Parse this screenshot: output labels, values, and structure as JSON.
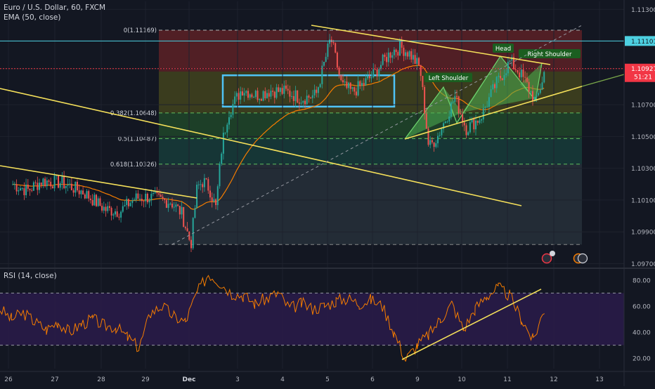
{
  "header": {
    "symbol": "Euro / U.S. Dollar, 60, FXCM",
    "ema_label": "EMA (50, close)",
    "rsi_label": "RSI (14, close)"
  },
  "colors": {
    "background": "#131722",
    "candle_up": "#26a69a",
    "candle_down": "#ef5350",
    "ema": "#f57c00",
    "trendline": "#f5e05a",
    "rsi_line": "#f57c00",
    "pattern_fill": "#4caf50",
    "range_box": "#4fc3f7",
    "fib_top": "#9e2a2b",
    "fib_mid": "#2e7d32",
    "fib_low": "#1b5e50",
    "fib_bottom": "#37474f",
    "rsi_band": "#2a1b4a",
    "current_price": "#f23645",
    "level_line": "#4dd0e1"
  },
  "chart_data": [
    {
      "type": "candlestick",
      "title": "Euro / U.S. Dollar, 60, FXCM",
      "x_ticks": [
        "26",
        "27",
        "28",
        "29",
        "Dec",
        "3",
        "4",
        "5",
        "6",
        "9",
        "10",
        "11",
        "12",
        "13"
      ],
      "y_ticks": [
        "1.11300",
        "1.11101",
        "1.10927",
        "1.10700",
        "1.10500",
        "1.10300",
        "1.10100",
        "1.09900",
        "1.09700"
      ],
      "ylim": [
        1.0968,
        1.1135
      ],
      "current_price": 1.10927,
      "current_price_label": "1.10927",
      "countdown": "51:21",
      "horizontal_level": 1.11101,
      "horizontal_level_label": "1.11101",
      "indicators": [
        "EMA (50, close)"
      ],
      "fibonacci": [
        {
          "level": "0",
          "price": 1.11169,
          "label": "0(1.11169)"
        },
        {
          "level": "0.382",
          "price": 1.10648,
          "label": "0.382(1.10648)"
        },
        {
          "level": "0.5",
          "price": 1.10487,
          "label": "0.5(1.10487)"
        },
        {
          "level": "0.618",
          "price": 1.10326,
          "label": "0.618(1.10326)"
        }
      ],
      "pattern": "head and shoulders",
      "annotations": [
        "Left Shoulder",
        "Head",
        "Right Shoulder"
      ],
      "price_path": [
        [
          "26",
          1.102
        ],
        [
          "26",
          1.1016
        ],
        [
          "26",
          1.1022
        ],
        [
          "27",
          1.1021
        ],
        [
          "27",
          1.1015
        ],
        [
          "28",
          1.1004
        ],
        [
          "28",
          1.1003
        ],
        [
          "28",
          1.1011
        ],
        [
          "29",
          1.1012
        ],
        [
          "29",
          1.101
        ],
        [
          "29",
          1.1009
        ],
        [
          "29",
          1.1002
        ],
        [
          "Dec",
          1.0982
        ],
        [
          "Dec",
          1.1018
        ],
        [
          "Dec",
          1.1022
        ],
        [
          "Dec",
          1.1017
        ],
        [
          "Dec",
          1.1005
        ],
        [
          "Dec",
          1.1045
        ],
        [
          "Dec",
          1.1065
        ],
        [
          "3",
          1.108
        ],
        [
          "3",
          1.1076
        ],
        [
          "3",
          1.1079
        ],
        [
          "4",
          1.1078
        ],
        [
          "4",
          1.1074
        ],
        [
          "4",
          1.1076
        ],
        [
          "5",
          1.1112
        ],
        [
          "5",
          1.1082
        ],
        [
          "5",
          1.1078
        ],
        [
          "5",
          1.1083
        ],
        [
          "6",
          1.109
        ],
        [
          "6",
          1.1098
        ],
        [
          "6",
          1.1104
        ],
        [
          "6",
          1.1106
        ],
        [
          "6",
          1.1102
        ],
        [
          "9",
          1.1093
        ],
        [
          "9",
          1.1043
        ],
        [
          "9",
          1.105
        ],
        [
          "9",
          1.1062
        ],
        [
          "9",
          1.1075
        ],
        [
          "10",
          1.1055
        ],
        [
          "10",
          1.1062
        ],
        [
          "10",
          1.1082
        ],
        [
          "11",
          1.1097
        ],
        [
          "11",
          1.1091
        ],
        [
          "11",
          1.1082
        ],
        [
          "11",
          1.1071
        ],
        [
          "11",
          1.1092
        ]
      ]
    },
    {
      "type": "line",
      "title": "RSI (14, close)",
      "y_ticks": [
        "80.00",
        "60.00",
        "40.00",
        "20.00"
      ],
      "ylim": [
        12,
        88
      ],
      "bands": [
        30,
        70
      ],
      "values": [
        58,
        50,
        55,
        48,
        42,
        48,
        40,
        46,
        50,
        45,
        44,
        36,
        28,
        55,
        60,
        52,
        48,
        70,
        85,
        78,
        70,
        68,
        62,
        66,
        70,
        58,
        62,
        58,
        60,
        64,
        66,
        62,
        65,
        60,
        40,
        19,
        30,
        38,
        50,
        62,
        42,
        58,
        68,
        74,
        68,
        50,
        34,
        58
      ]
    }
  ]
}
